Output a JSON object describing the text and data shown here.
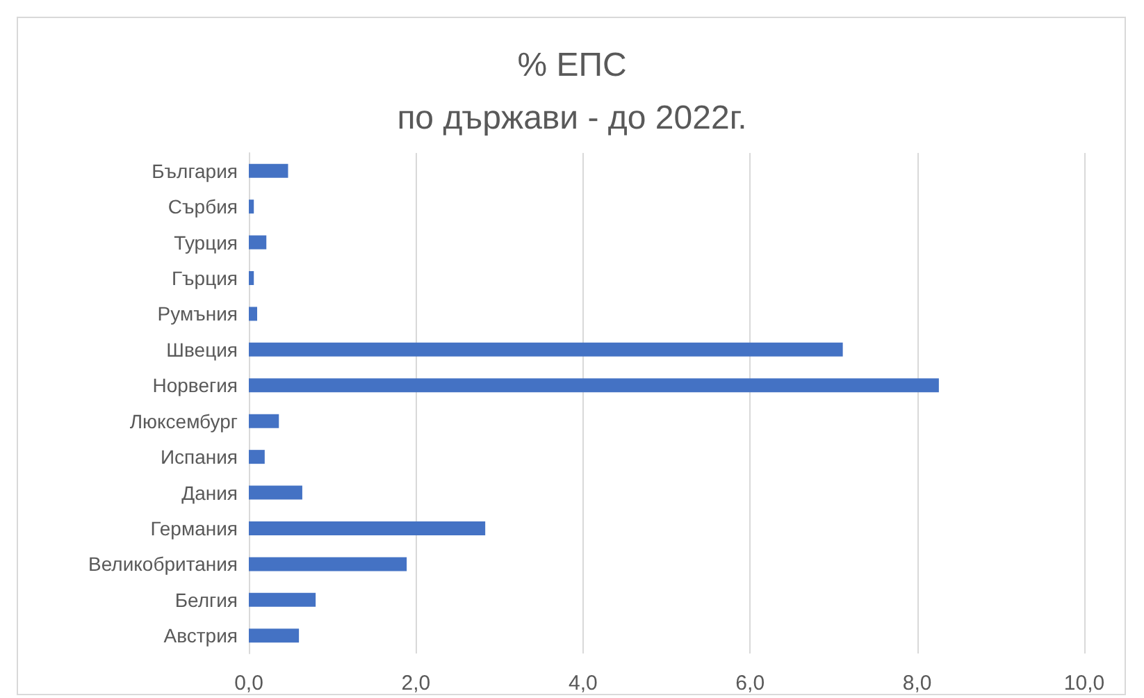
{
  "chart_data": {
    "type": "bar",
    "orientation": "horizontal",
    "title": "% ЕПС",
    "subtitle": "по държави - до 2022г.",
    "categories": [
      "България",
      "Сърбия",
      "Турция",
      "Гърция",
      "Румъния",
      "Швеция",
      "Норвегия",
      "Люксембург",
      "Испания",
      "Дания",
      "Германия",
      "Великобритания",
      "Белгия",
      "Австрия"
    ],
    "values": [
      0.47,
      0.06,
      0.21,
      0.06,
      0.1,
      7.11,
      8.26,
      0.36,
      0.19,
      0.64,
      2.83,
      1.89,
      0.8,
      0.6
    ],
    "color": "#4472c4",
    "xlim": [
      0,
      10
    ],
    "xticks": [
      {
        "value": 0,
        "label": "0,0"
      },
      {
        "value": 2,
        "label": "2,0"
      },
      {
        "value": 4,
        "label": "4,0"
      },
      {
        "value": 6,
        "label": "6,0"
      },
      {
        "value": 8,
        "label": "8,0"
      },
      {
        "value": 10,
        "label": "10,0"
      }
    ],
    "grid": "x"
  }
}
